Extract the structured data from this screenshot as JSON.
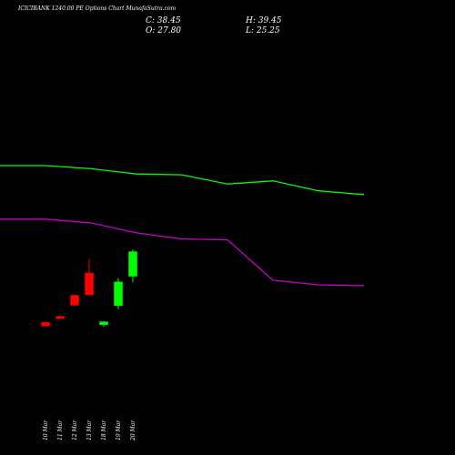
{
  "header": {
    "title": "ICICIBANK 1240.00 PE Options Chart MunafaSutra.com",
    "close_text": "C: 38.45",
    "open_text": "O: 27.80",
    "high_text": "H: 39.45",
    "low_text": "L: 25.25"
  },
  "colors": {
    "background": "#000000",
    "up": "#00ff00",
    "down": "#ff0000",
    "upper_line": "#00ff00",
    "lower_line": "#cc00cc",
    "text": "#ffffff"
  },
  "chart_data": {
    "type": "candlestick",
    "categories": [
      "10 Mar",
      "11 Mar",
      "12 Mar",
      "13 Mar",
      "18 Mar",
      "19 Mar",
      "20 Mar"
    ],
    "candles": [
      {
        "date": "10 Mar",
        "open": 7.7,
        "high": 8.3,
        "low": 6.0,
        "close": 6.2
      },
      {
        "date": "11 Mar",
        "open": 10.3,
        "high": 10.6,
        "low": 9.3,
        "close": 9.4
      },
      {
        "date": "12 Mar",
        "open": 19.5,
        "high": 19.9,
        "low": 14.9,
        "close": 15.2
      },
      {
        "date": "13 Mar",
        "open": 29.2,
        "high": 35.2,
        "low": 19.4,
        "close": 19.7
      },
      {
        "date": "18 Mar",
        "open": 6.8,
        "high": 8.3,
        "low": 5.8,
        "close": 8.0
      },
      {
        "date": "19 Mar",
        "open": 15.0,
        "high": 27.0,
        "low": 13.5,
        "close": 25.3
      },
      {
        "date": "20 Mar",
        "open": 27.8,
        "high": 39.45,
        "low": 25.25,
        "close": 38.45
      }
    ],
    "overlay_series": [
      {
        "values": [
          200,
          200,
          196,
          189,
          188,
          176,
          180,
          167,
          162
        ]
      },
      {
        "values": [
          130,
          130,
          125,
          112,
          104,
          103,
          50,
          44,
          43
        ]
      }
    ],
    "y_range": [
      -4,
      45
    ]
  }
}
